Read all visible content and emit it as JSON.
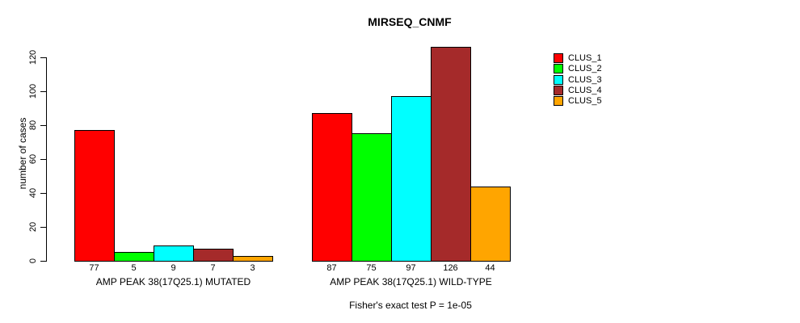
{
  "chart_data": {
    "type": "bar",
    "title": "MIRSEQ_CNMF",
    "ylabel": "number of cases",
    "ylim": [
      0,
      120
    ],
    "yticks": [
      0,
      20,
      40,
      60,
      80,
      100,
      120
    ],
    "grid": false,
    "legend_position": "top-right",
    "legend": [
      {
        "label": "CLUS_1",
        "color": "#ff0000"
      },
      {
        "label": "CLUS_2",
        "color": "#00ff00"
      },
      {
        "label": "CLUS_3",
        "color": "#00ffff"
      },
      {
        "label": "CLUS_4",
        "color": "#a52a2a"
      },
      {
        "label": "CLUS_5",
        "color": "#ffa500"
      }
    ],
    "series_names": [
      "CLUS_1",
      "CLUS_2",
      "CLUS_3",
      "CLUS_4",
      "CLUS_5"
    ],
    "groups": [
      {
        "label": "AMP PEAK 38(17Q25.1) MUTATED",
        "values": [
          77,
          5,
          9,
          7,
          3
        ]
      },
      {
        "label": "AMP PEAK 38(17Q25.1) WILD-TYPE",
        "values": [
          87,
          75,
          97,
          126,
          44
        ]
      }
    ],
    "bar_value_labels_shown": true,
    "footnote": "Fisher's exact test P = 1e-05"
  }
}
